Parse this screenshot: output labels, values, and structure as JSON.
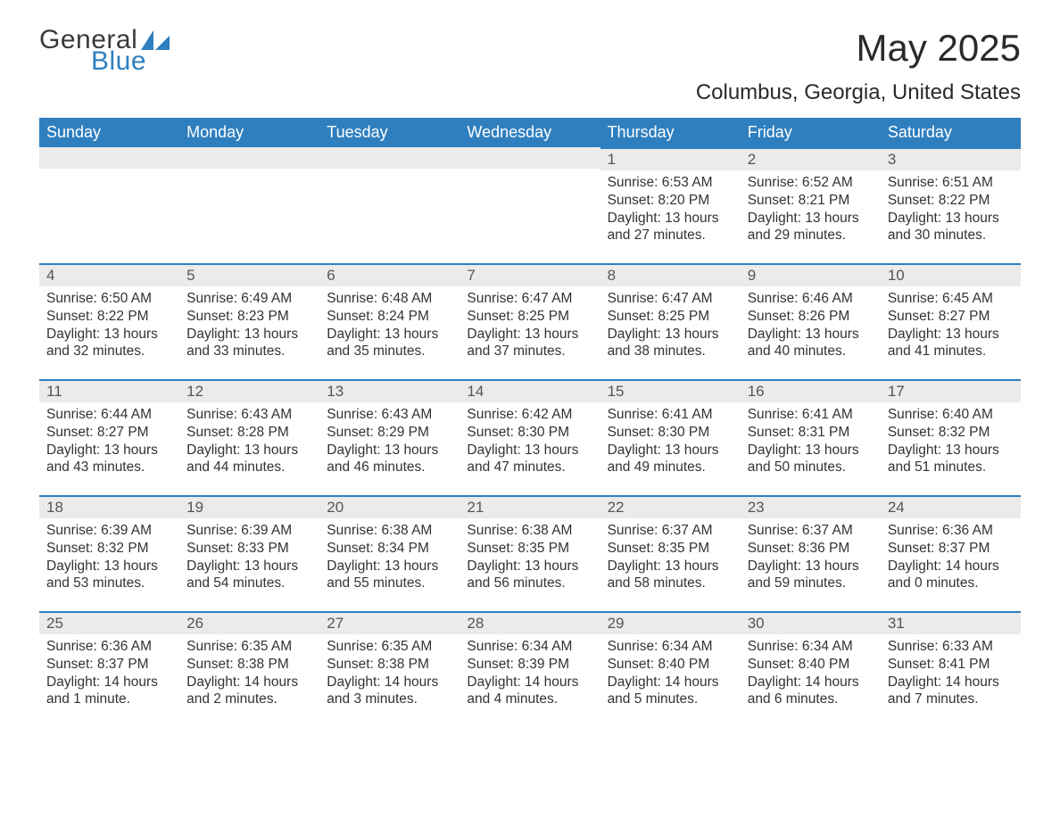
{
  "brand": {
    "part1": "General",
    "part2": "Blue",
    "accent": "#2f7fbf",
    "text_color": "#3a3a3a"
  },
  "title": "May 2025",
  "subtitle": "Columbus, Georgia, United States",
  "colors": {
    "header_bg": "#2f7fbf",
    "header_text": "#ffffff",
    "daynum_bg": "#ebebeb",
    "body_text": "#333333",
    "page_bg": "#ffffff"
  },
  "typography": {
    "title_fontsize": 42,
    "subtitle_fontsize": 24,
    "weekday_fontsize": 18,
    "daynum_fontsize": 17,
    "body_fontsize": 15.5
  },
  "weekdays": [
    "Sunday",
    "Monday",
    "Tuesday",
    "Wednesday",
    "Thursday",
    "Friday",
    "Saturday"
  ],
  "weeks": [
    [
      null,
      null,
      null,
      null,
      {
        "n": "1",
        "sr": "Sunrise: 6:53 AM",
        "ss": "Sunset: 8:20 PM",
        "dl": "Daylight: 13 hours and 27 minutes."
      },
      {
        "n": "2",
        "sr": "Sunrise: 6:52 AM",
        "ss": "Sunset: 8:21 PM",
        "dl": "Daylight: 13 hours and 29 minutes."
      },
      {
        "n": "3",
        "sr": "Sunrise: 6:51 AM",
        "ss": "Sunset: 8:22 PM",
        "dl": "Daylight: 13 hours and 30 minutes."
      }
    ],
    [
      {
        "n": "4",
        "sr": "Sunrise: 6:50 AM",
        "ss": "Sunset: 8:22 PM",
        "dl": "Daylight: 13 hours and 32 minutes."
      },
      {
        "n": "5",
        "sr": "Sunrise: 6:49 AM",
        "ss": "Sunset: 8:23 PM",
        "dl": "Daylight: 13 hours and 33 minutes."
      },
      {
        "n": "6",
        "sr": "Sunrise: 6:48 AM",
        "ss": "Sunset: 8:24 PM",
        "dl": "Daylight: 13 hours and 35 minutes."
      },
      {
        "n": "7",
        "sr": "Sunrise: 6:47 AM",
        "ss": "Sunset: 8:25 PM",
        "dl": "Daylight: 13 hours and 37 minutes."
      },
      {
        "n": "8",
        "sr": "Sunrise: 6:47 AM",
        "ss": "Sunset: 8:25 PM",
        "dl": "Daylight: 13 hours and 38 minutes."
      },
      {
        "n": "9",
        "sr": "Sunrise: 6:46 AM",
        "ss": "Sunset: 8:26 PM",
        "dl": "Daylight: 13 hours and 40 minutes."
      },
      {
        "n": "10",
        "sr": "Sunrise: 6:45 AM",
        "ss": "Sunset: 8:27 PM",
        "dl": "Daylight: 13 hours and 41 minutes."
      }
    ],
    [
      {
        "n": "11",
        "sr": "Sunrise: 6:44 AM",
        "ss": "Sunset: 8:27 PM",
        "dl": "Daylight: 13 hours and 43 minutes."
      },
      {
        "n": "12",
        "sr": "Sunrise: 6:43 AM",
        "ss": "Sunset: 8:28 PM",
        "dl": "Daylight: 13 hours and 44 minutes."
      },
      {
        "n": "13",
        "sr": "Sunrise: 6:43 AM",
        "ss": "Sunset: 8:29 PM",
        "dl": "Daylight: 13 hours and 46 minutes."
      },
      {
        "n": "14",
        "sr": "Sunrise: 6:42 AM",
        "ss": "Sunset: 8:30 PM",
        "dl": "Daylight: 13 hours and 47 minutes."
      },
      {
        "n": "15",
        "sr": "Sunrise: 6:41 AM",
        "ss": "Sunset: 8:30 PM",
        "dl": "Daylight: 13 hours and 49 minutes."
      },
      {
        "n": "16",
        "sr": "Sunrise: 6:41 AM",
        "ss": "Sunset: 8:31 PM",
        "dl": "Daylight: 13 hours and 50 minutes."
      },
      {
        "n": "17",
        "sr": "Sunrise: 6:40 AM",
        "ss": "Sunset: 8:32 PM",
        "dl": "Daylight: 13 hours and 51 minutes."
      }
    ],
    [
      {
        "n": "18",
        "sr": "Sunrise: 6:39 AM",
        "ss": "Sunset: 8:32 PM",
        "dl": "Daylight: 13 hours and 53 minutes."
      },
      {
        "n": "19",
        "sr": "Sunrise: 6:39 AM",
        "ss": "Sunset: 8:33 PM",
        "dl": "Daylight: 13 hours and 54 minutes."
      },
      {
        "n": "20",
        "sr": "Sunrise: 6:38 AM",
        "ss": "Sunset: 8:34 PM",
        "dl": "Daylight: 13 hours and 55 minutes."
      },
      {
        "n": "21",
        "sr": "Sunrise: 6:38 AM",
        "ss": "Sunset: 8:35 PM",
        "dl": "Daylight: 13 hours and 56 minutes."
      },
      {
        "n": "22",
        "sr": "Sunrise: 6:37 AM",
        "ss": "Sunset: 8:35 PM",
        "dl": "Daylight: 13 hours and 58 minutes."
      },
      {
        "n": "23",
        "sr": "Sunrise: 6:37 AM",
        "ss": "Sunset: 8:36 PM",
        "dl": "Daylight: 13 hours and 59 minutes."
      },
      {
        "n": "24",
        "sr": "Sunrise: 6:36 AM",
        "ss": "Sunset: 8:37 PM",
        "dl": "Daylight: 14 hours and 0 minutes."
      }
    ],
    [
      {
        "n": "25",
        "sr": "Sunrise: 6:36 AM",
        "ss": "Sunset: 8:37 PM",
        "dl": "Daylight: 14 hours and 1 minute."
      },
      {
        "n": "26",
        "sr": "Sunrise: 6:35 AM",
        "ss": "Sunset: 8:38 PM",
        "dl": "Daylight: 14 hours and 2 minutes."
      },
      {
        "n": "27",
        "sr": "Sunrise: 6:35 AM",
        "ss": "Sunset: 8:38 PM",
        "dl": "Daylight: 14 hours and 3 minutes."
      },
      {
        "n": "28",
        "sr": "Sunrise: 6:34 AM",
        "ss": "Sunset: 8:39 PM",
        "dl": "Daylight: 14 hours and 4 minutes."
      },
      {
        "n": "29",
        "sr": "Sunrise: 6:34 AM",
        "ss": "Sunset: 8:40 PM",
        "dl": "Daylight: 14 hours and 5 minutes."
      },
      {
        "n": "30",
        "sr": "Sunrise: 6:34 AM",
        "ss": "Sunset: 8:40 PM",
        "dl": "Daylight: 14 hours and 6 minutes."
      },
      {
        "n": "31",
        "sr": "Sunrise: 6:33 AM",
        "ss": "Sunset: 8:41 PM",
        "dl": "Daylight: 14 hours and 7 minutes."
      }
    ]
  ]
}
